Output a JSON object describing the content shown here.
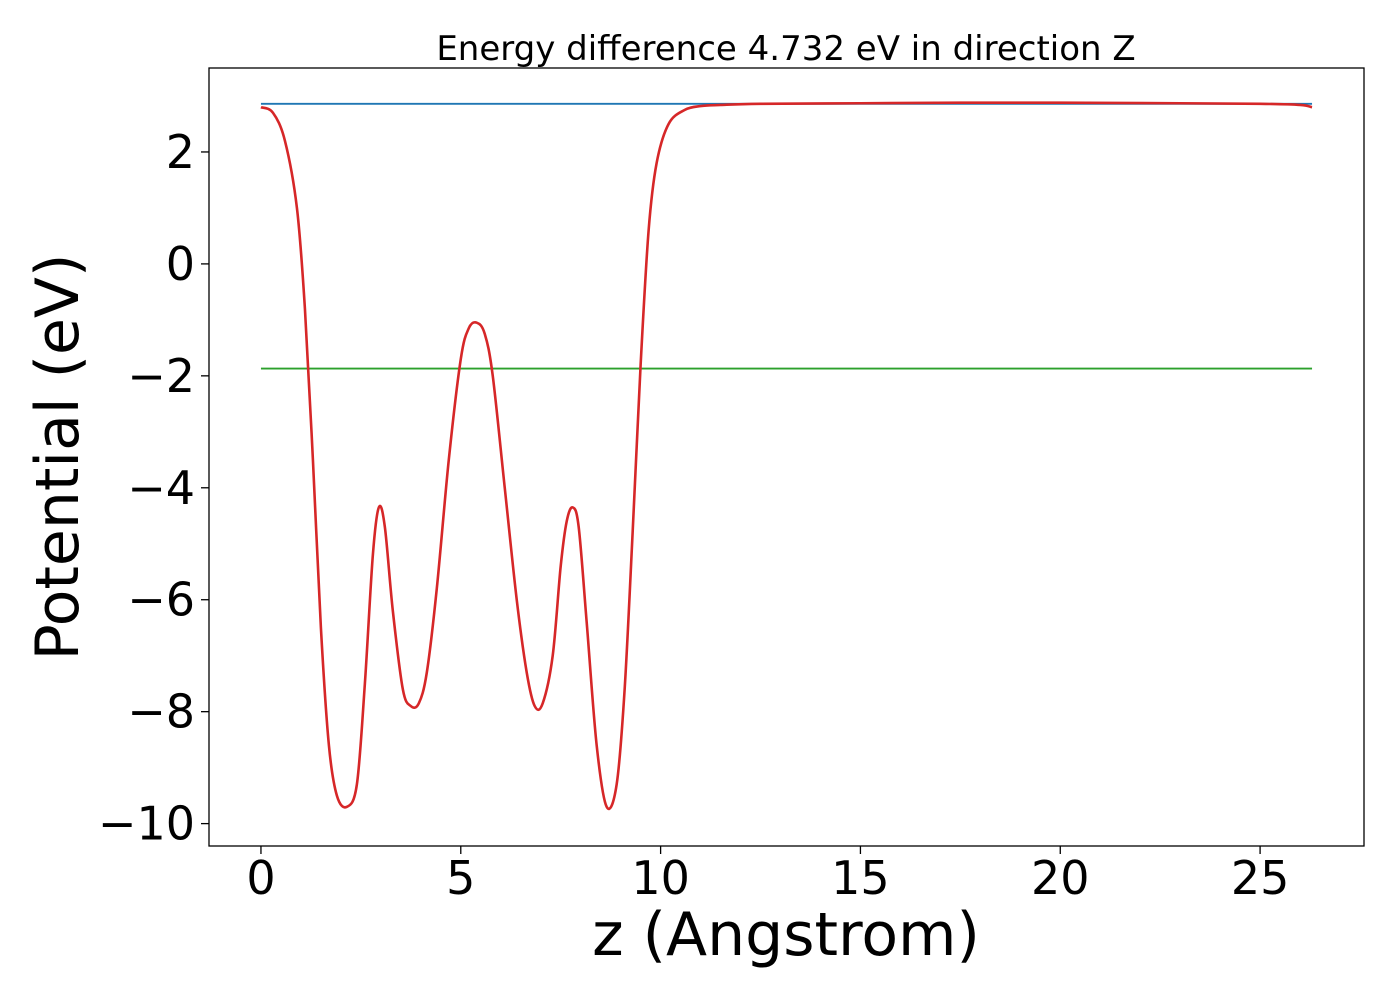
{
  "chart_data": {
    "type": "line",
    "title": "Energy difference 4.732 eV in direction Z",
    "xlabel": "z (Angstrom)",
    "ylabel": "Potential (eV)",
    "xlim": [
      -1.3,
      27.6
    ],
    "ylim": [
      -10.4,
      3.5
    ],
    "xticks": [
      0,
      5,
      10,
      15,
      20,
      25
    ],
    "yticks": [
      2,
      0,
      -2,
      -4,
      -6,
      -8,
      -10
    ],
    "xtick_labels": [
      "0",
      "5",
      "10",
      "15",
      "20",
      "25"
    ],
    "ytick_labels": [
      "2",
      "0",
      "−2",
      "−4",
      "−6",
      "−8",
      "−10"
    ],
    "grid": false,
    "legend": "none",
    "series": [
      {
        "color": "#1f77b4",
        "style": "flat",
        "x": [
          0,
          26.3
        ],
        "y": [
          2.86,
          2.86
        ]
      },
      {
        "color": "#2ca02c",
        "style": "flat",
        "x": [
          0,
          26.3
        ],
        "y": [
          -1.87,
          -1.87
        ]
      },
      {
        "color": "#d62728",
        "style": "smooth",
        "x": [
          0,
          0.3,
          0.6,
          0.9,
          1.1,
          1.3,
          1.5,
          1.7,
          1.9,
          2.15,
          2.4,
          2.6,
          2.8,
          2.95,
          3.1,
          3.3,
          3.55,
          3.75,
          3.95,
          4.15,
          4.4,
          4.7,
          5.0,
          5.2,
          5.4,
          5.6,
          5.8,
          6.1,
          6.4,
          6.65,
          6.85,
          7.05,
          7.3,
          7.5,
          7.65,
          7.8,
          7.95,
          8.15,
          8.4,
          8.65,
          8.9,
          9.1,
          9.3,
          9.5,
          9.7,
          9.9,
          10.2,
          10.6,
          11.0,
          11.5,
          12.5,
          15,
          17.5,
          20,
          23,
          25,
          26,
          26.3
        ],
        "y": [
          2.8,
          2.7,
          2.2,
          1.0,
          -0.8,
          -3.5,
          -6.5,
          -8.6,
          -9.5,
          -9.7,
          -9.3,
          -7.5,
          -5.2,
          -4.35,
          -4.7,
          -6.2,
          -7.6,
          -7.9,
          -7.85,
          -7.3,
          -5.8,
          -3.5,
          -1.7,
          -1.15,
          -1.05,
          -1.25,
          -2.0,
          -4.0,
          -6.0,
          -7.3,
          -7.9,
          -7.85,
          -7.0,
          -5.4,
          -4.6,
          -4.35,
          -4.7,
          -6.4,
          -8.6,
          -9.7,
          -9.3,
          -7.6,
          -4.8,
          -1.8,
          0.6,
          1.8,
          2.5,
          2.75,
          2.82,
          2.84,
          2.86,
          2.87,
          2.88,
          2.88,
          2.87,
          2.86,
          2.84,
          2.8
        ]
      }
    ]
  }
}
